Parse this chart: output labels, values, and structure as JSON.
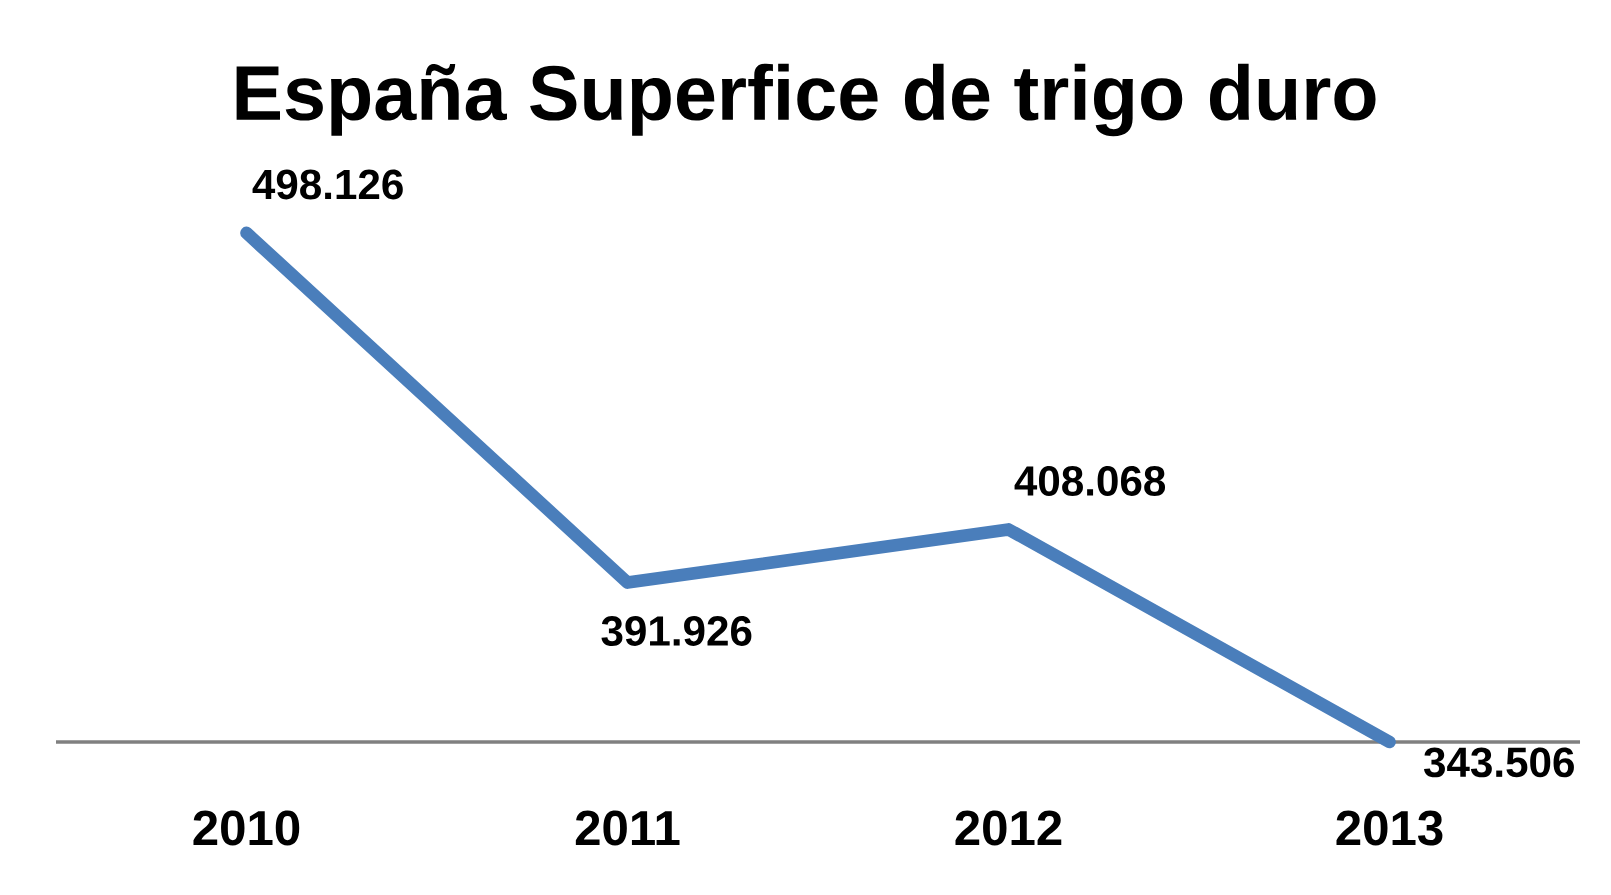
{
  "chart_data": {
    "type": "line",
    "title": "España Superfice de trigo duro",
    "categories": [
      "2010",
      "2011",
      "2012",
      "2013"
    ],
    "values": [
      498126,
      391926,
      408068,
      343506
    ],
    "value_labels": [
      "498.126",
      "391.926",
      "408.068",
      "343.506"
    ],
    "color": "#4a7ebb"
  }
}
